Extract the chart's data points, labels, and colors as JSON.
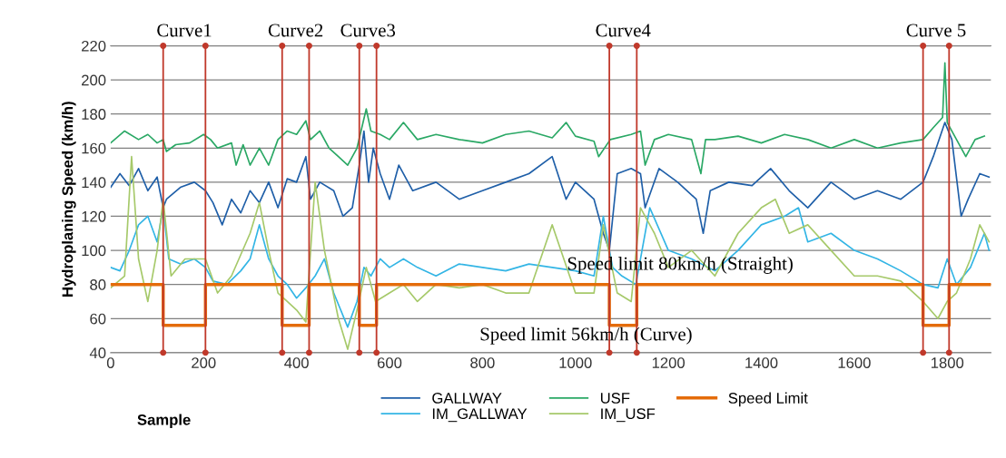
{
  "chart_data": {
    "type": "line",
    "ylabel": "Hydroplaning Speed (km/h)",
    "xlabel": "Sample",
    "xlim": [
      0,
      1894
    ],
    "xticks": [
      0,
      200,
      400,
      600,
      800,
      1000,
      1200,
      1400,
      1600,
      1800
    ],
    "ylim": [
      40,
      220
    ],
    "yticks": [
      40,
      60,
      80,
      100,
      120,
      140,
      160,
      180,
      200,
      220
    ],
    "grid": "y",
    "legend": "bottom",
    "line_style": "solid",
    "marker": "none",
    "series": [
      {
        "name": "GALLWAY",
        "color": "#1f5fa8",
        "x": [
          0,
          20,
          40,
          60,
          80,
          100,
          113,
          120,
          150,
          180,
          204,
          220,
          240,
          260,
          280,
          300,
          320,
          340,
          360,
          380,
          400,
          420,
          430,
          450,
          480,
          500,
          520,
          535,
          545,
          555,
          565,
          580,
          600,
          620,
          650,
          700,
          750,
          800,
          850,
          900,
          950,
          980,
          1000,
          1040,
          1060,
          1073,
          1090,
          1120,
          1140,
          1150,
          1180,
          1220,
          1260,
          1275,
          1290,
          1330,
          1380,
          1420,
          1460,
          1500,
          1550,
          1600,
          1650,
          1700,
          1748,
          1770,
          1795,
          1810,
          1830,
          1845,
          1870,
          1890
        ],
        "values": [
          137,
          145,
          138,
          148,
          135,
          143,
          125,
          130,
          137,
          140,
          135,
          128,
          115,
          130,
          122,
          135,
          128,
          140,
          125,
          142,
          140,
          155,
          130,
          140,
          135,
          120,
          125,
          150,
          170,
          140,
          160,
          145,
          130,
          150,
          135,
          140,
          130,
          135,
          140,
          145,
          155,
          130,
          140,
          130,
          110,
          100,
          145,
          148,
          145,
          125,
          148,
          140,
          130,
          110,
          135,
          140,
          138,
          148,
          135,
          125,
          140,
          130,
          135,
          130,
          140,
          155,
          175,
          165,
          120,
          130,
          145,
          143
        ]
      },
      {
        "name": "IM_GALLWAY",
        "color": "#33b5e5",
        "x": [
          0,
          20,
          40,
          60,
          80,
          100,
          113,
          125,
          150,
          180,
          204,
          220,
          250,
          280,
          300,
          320,
          340,
          360,
          380,
          400,
          420,
          440,
          460,
          480,
          510,
          530,
          545,
          560,
          580,
          600,
          630,
          660,
          700,
          750,
          800,
          850,
          900,
          950,
          1000,
          1040,
          1060,
          1080,
          1100,
          1130,
          1160,
          1200,
          1250,
          1300,
          1350,
          1400,
          1450,
          1480,
          1500,
          1550,
          1600,
          1650,
          1700,
          1748,
          1780,
          1800,
          1820,
          1850,
          1880,
          1890
        ],
        "values": [
          90,
          88,
          100,
          115,
          120,
          105,
          125,
          95,
          92,
          95,
          90,
          82,
          80,
          88,
          95,
          115,
          95,
          85,
          80,
          72,
          78,
          85,
          95,
          75,
          55,
          70,
          90,
          85,
          95,
          90,
          95,
          90,
          85,
          92,
          90,
          88,
          92,
          90,
          88,
          85,
          120,
          90,
          85,
          80,
          125,
          100,
          95,
          88,
          100,
          115,
          120,
          125,
          105,
          110,
          100,
          95,
          88,
          80,
          78,
          95,
          80,
          90,
          110,
          100
        ]
      },
      {
        "name": "USF",
        "color": "#2aa865",
        "x": [
          0,
          30,
          60,
          80,
          100,
          113,
          120,
          140,
          170,
          200,
          215,
          230,
          260,
          270,
          285,
          300,
          320,
          340,
          360,
          380,
          400,
          420,
          430,
          450,
          470,
          490,
          510,
          530,
          550,
          560,
          580,
          600,
          630,
          660,
          700,
          750,
          800,
          850,
          900,
          950,
          980,
          1000,
          1040,
          1050,
          1075,
          1120,
          1140,
          1150,
          1170,
          1200,
          1250,
          1270,
          1280,
          1300,
          1350,
          1400,
          1450,
          1500,
          1550,
          1600,
          1650,
          1700,
          1748,
          1770,
          1790,
          1795,
          1800,
          1820,
          1840,
          1860,
          1880
        ],
        "values": [
          163,
          170,
          165,
          168,
          163,
          165,
          158,
          162,
          163,
          168,
          165,
          160,
          163,
          150,
          162,
          150,
          160,
          150,
          165,
          170,
          168,
          176,
          165,
          170,
          160,
          155,
          150,
          160,
          183,
          170,
          168,
          165,
          175,
          165,
          168,
          165,
          163,
          168,
          170,
          166,
          175,
          167,
          164,
          155,
          165,
          168,
          170,
          150,
          165,
          168,
          165,
          145,
          165,
          165,
          167,
          163,
          168,
          165,
          160,
          165,
          160,
          163,
          165,
          172,
          178,
          210,
          175,
          165,
          155,
          165,
          167
        ]
      },
      {
        "name": "IM_USF",
        "color": "#a6c96a",
        "x": [
          0,
          30,
          45,
          60,
          80,
          100,
          113,
          130,
          160,
          204,
          230,
          260,
          300,
          320,
          340,
          360,
          380,
          400,
          420,
          440,
          460,
          490,
          510,
          530,
          550,
          570,
          600,
          630,
          660,
          700,
          750,
          800,
          850,
          900,
          950,
          1000,
          1040,
          1060,
          1090,
          1120,
          1140,
          1170,
          1200,
          1250,
          1300,
          1350,
          1400,
          1430,
          1460,
          1500,
          1550,
          1600,
          1650,
          1700,
          1748,
          1780,
          1800,
          1820,
          1850,
          1870,
          1890
        ],
        "values": [
          78,
          85,
          155,
          95,
          70,
          100,
          130,
          85,
          95,
          95,
          75,
          85,
          110,
          128,
          100,
          75,
          70,
          65,
          58,
          140,
          100,
          60,
          42,
          65,
          90,
          70,
          75,
          80,
          70,
          80,
          78,
          80,
          75,
          75,
          115,
          75,
          75,
          115,
          75,
          70,
          125,
          110,
          90,
          100,
          85,
          110,
          125,
          130,
          110,
          115,
          100,
          85,
          85,
          82,
          70,
          60,
          70,
          75,
          95,
          115,
          105
        ]
      },
      {
        "name": "Speed Limit",
        "color": "#e46c0a",
        "x": [
          0,
          113,
          113,
          204,
          204,
          369,
          369,
          427,
          427,
          535,
          535,
          572,
          572,
          1073,
          1073,
          1132,
          1132,
          1748,
          1748,
          1804,
          1804,
          1894
        ],
        "values": [
          80,
          80,
          56,
          56,
          80,
          80,
          56,
          56,
          80,
          80,
          56,
          56,
          80,
          80,
          56,
          56,
          80,
          80,
          56,
          56,
          80,
          80
        ]
      }
    ],
    "ref_lines": [
      {
        "axis": "x",
        "value": 113,
        "color": "#c0392b"
      },
      {
        "axis": "x",
        "value": 204,
        "color": "#c0392b"
      },
      {
        "axis": "x",
        "value": 369,
        "color": "#c0392b"
      },
      {
        "axis": "x",
        "value": 427,
        "color": "#c0392b"
      },
      {
        "axis": "x",
        "value": 535,
        "color": "#c0392b"
      },
      {
        "axis": "x",
        "value": 572,
        "color": "#c0392b"
      },
      {
        "axis": "x",
        "value": 1073,
        "color": "#c0392b"
      },
      {
        "axis": "x",
        "value": 1132,
        "color": "#c0392b"
      },
      {
        "axis": "x",
        "value": 1748,
        "color": "#c0392b"
      },
      {
        "axis": "x",
        "value": 1804,
        "color": "#c0392b"
      }
    ],
    "annotations": [
      "Curve1",
      "Curve2",
      "Curve3",
      "Curve4",
      "Curve 5",
      "Speed limit 80km/h (Straight)",
      "Speed limit 56km/h (Curve)"
    ]
  }
}
